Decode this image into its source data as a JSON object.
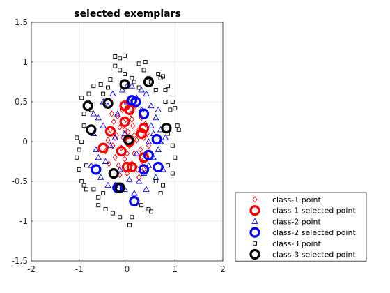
{
  "chart_data": {
    "type": "scatter",
    "title": "selected exemplars",
    "xlabel": "",
    "ylabel": "",
    "xlim": [
      -2,
      2
    ],
    "ylim": [
      -1.5,
      1.5
    ],
    "xticks": [
      "-2",
      "-1",
      "0",
      "1",
      "2"
    ],
    "yticks": [
      "1.5",
      "1",
      "0.5",
      "0",
      "-0.5",
      "-1",
      "-1.5"
    ],
    "grid": true,
    "legend_position": "bottom-right-outside",
    "series": [
      {
        "name": "class-1 point",
        "role": "point",
        "marker": "diamond",
        "color": "#ff0000",
        "points": [
          [
            -0.45,
            -0.12
          ],
          [
            -0.4,
            0.02
          ],
          [
            -0.35,
            0.15
          ],
          [
            -0.3,
            -0.05
          ],
          [
            -0.28,
            0.25
          ],
          [
            -0.25,
            -0.2
          ],
          [
            -0.22,
            0.08
          ],
          [
            -0.2,
            0.32
          ],
          [
            -0.18,
            -0.3
          ],
          [
            -0.15,
            0.18
          ],
          [
            -0.12,
            -0.08
          ],
          [
            -0.1,
            0.4
          ],
          [
            -0.08,
            0.05
          ],
          [
            -0.05,
            -0.22
          ],
          [
            -0.03,
            0.28
          ],
          [
            0.0,
            -0.4
          ],
          [
            0.02,
            0.12
          ],
          [
            0.05,
            -0.05
          ],
          [
            0.08,
            0.35
          ],
          [
            0.1,
            -0.28
          ],
          [
            0.12,
            0.2
          ],
          [
            0.15,
            -0.15
          ],
          [
            0.18,
            0.45
          ],
          [
            0.2,
            0.02
          ],
          [
            0.22,
            -0.35
          ],
          [
            0.25,
            0.15
          ],
          [
            0.28,
            -0.1
          ],
          [
            0.3,
            0.3
          ],
          [
            0.32,
            -0.25
          ],
          [
            0.35,
            0.05
          ],
          [
            0.38,
            0.22
          ],
          [
            0.4,
            -0.15
          ],
          [
            0.42,
            0.1
          ],
          [
            0.45,
            -0.05
          ],
          [
            -0.32,
            0.35
          ],
          [
            -0.38,
            -0.28
          ],
          [
            0.05,
            0.5
          ],
          [
            -0.15,
            -0.42
          ],
          [
            0.25,
            -0.45
          ],
          [
            0.15,
            0.08
          ],
          [
            -0.05,
            0.15
          ],
          [
            0.0,
            -0.15
          ],
          [
            0.35,
            -0.35
          ],
          [
            -0.25,
            0.05
          ],
          [
            0.1,
            0.28
          ]
        ]
      },
      {
        "name": "class-1 selected point",
        "role": "selected",
        "marker": "circle",
        "color": "#ff0000",
        "points": [
          [
            -0.05,
            0.45
          ],
          [
            0.05,
            0.4
          ],
          [
            -0.05,
            0.25
          ],
          [
            0.35,
            0.17
          ],
          [
            -0.35,
            0.13
          ],
          [
            0.3,
            0.1
          ],
          [
            -0.5,
            -0.08
          ],
          [
            -0.12,
            -0.12
          ],
          [
            0.0,
            -0.32
          ],
          [
            0.1,
            -0.32
          ],
          [
            0.35,
            -0.2
          ],
          [
            0.05,
            0.0
          ]
        ]
      },
      {
        "name": "class-2 point",
        "role": "point",
        "marker": "triangle",
        "color": "#0000ff",
        "points": [
          [
            -0.75,
            -0.3
          ],
          [
            -0.7,
            0.1
          ],
          [
            -0.65,
            -0.1
          ],
          [
            -0.6,
            0.3
          ],
          [
            -0.55,
            -0.45
          ],
          [
            -0.5,
            0.2
          ],
          [
            -0.45,
            -0.25
          ],
          [
            -0.4,
            0.45
          ],
          [
            -0.35,
            -0.05
          ],
          [
            -0.3,
            0.6
          ],
          [
            -0.25,
            -0.55
          ],
          [
            -0.2,
            0.35
          ],
          [
            -0.15,
            -0.35
          ],
          [
            -0.1,
            0.65
          ],
          [
            -0.05,
            -0.6
          ],
          [
            0.0,
            0.5
          ],
          [
            0.05,
            -0.48
          ],
          [
            0.1,
            0.7
          ],
          [
            0.15,
            -0.65
          ],
          [
            0.2,
            0.55
          ],
          [
            0.25,
            -0.5
          ],
          [
            0.3,
            0.4
          ],
          [
            0.35,
            -0.4
          ],
          [
            0.4,
            0.6
          ],
          [
            0.45,
            -0.3
          ],
          [
            0.5,
            0.45
          ],
          [
            0.55,
            -0.2
          ],
          [
            0.6,
            0.3
          ],
          [
            0.65,
            -0.1
          ],
          [
            0.7,
            0.15
          ],
          [
            0.75,
            -0.35
          ],
          [
            0.7,
            0.0
          ],
          [
            0.65,
            0.4
          ],
          [
            0.6,
            -0.45
          ],
          [
            0.5,
            0.2
          ],
          [
            0.45,
            0.0
          ],
          [
            -0.5,
            0.5
          ],
          [
            -0.6,
            -0.2
          ],
          [
            0.3,
            0.65
          ],
          [
            -0.25,
            0.05
          ],
          [
            0.2,
            -0.15
          ],
          [
            0.55,
            0.1
          ],
          [
            -0.7,
            0.35
          ],
          [
            0.8,
            0.05
          ],
          [
            -0.4,
            -0.55
          ],
          [
            0.4,
            -0.6
          ],
          [
            0.0,
            0.7
          ],
          [
            -0.05,
            0.1
          ]
        ]
      },
      {
        "name": "class-2 selected point",
        "role": "selected",
        "marker": "circle",
        "color": "#0000ff",
        "points": [
          [
            0.1,
            0.52
          ],
          [
            0.18,
            0.5
          ],
          [
            0.35,
            0.35
          ],
          [
            0.62,
            0.03
          ],
          [
            0.45,
            -0.17
          ],
          [
            -0.65,
            -0.35
          ],
          [
            0.35,
            -0.35
          ],
          [
            0.65,
            -0.32
          ],
          [
            0.15,
            -0.75
          ],
          [
            -0.2,
            -0.58
          ]
        ]
      },
      {
        "name": "class-3 point",
        "role": "point",
        "marker": "square",
        "color": "#000000",
        "points": [
          [
            -0.25,
            1.07
          ],
          [
            -0.15,
            1.05
          ],
          [
            -0.05,
            1.08
          ],
          [
            0.25,
            0.98
          ],
          [
            0.38,
            1.0
          ],
          [
            -0.25,
            0.95
          ],
          [
            -0.15,
            0.9
          ],
          [
            0.35,
            0.9
          ],
          [
            0.65,
            0.85
          ],
          [
            0.7,
            0.8
          ],
          [
            -0.05,
            0.85
          ],
          [
            0.1,
            0.8
          ],
          [
            0.45,
            0.8
          ],
          [
            0.75,
            0.82
          ],
          [
            -0.55,
            0.72
          ],
          [
            -0.4,
            0.68
          ],
          [
            0.25,
            0.68
          ],
          [
            0.6,
            0.65
          ],
          [
            0.8,
            0.65
          ],
          [
            -0.95,
            0.55
          ],
          [
            -0.8,
            0.6
          ],
          [
            -0.5,
            0.6
          ],
          [
            0.95,
            0.5
          ],
          [
            0.8,
            0.5
          ],
          [
            -0.9,
            0.35
          ],
          [
            -0.75,
            0.4
          ],
          [
            0.9,
            0.4
          ],
          [
            1.0,
            0.42
          ],
          [
            -1.05,
            0.05
          ],
          [
            -0.95,
            0.0
          ],
          [
            1.05,
            0.2
          ],
          [
            1.08,
            0.15
          ],
          [
            -0.9,
            0.2
          ],
          [
            -1.0,
            -0.1
          ],
          [
            0.95,
            -0.05
          ],
          [
            0.85,
            0.1
          ],
          [
            -1.0,
            -0.35
          ],
          [
            -0.85,
            -0.3
          ],
          [
            0.95,
            -0.4
          ],
          [
            0.85,
            -0.3
          ],
          [
            -0.9,
            -0.55
          ],
          [
            -0.7,
            -0.6
          ],
          [
            0.75,
            -0.55
          ],
          [
            0.6,
            -0.5
          ],
          [
            -0.6,
            -0.8
          ],
          [
            -0.45,
            -0.85
          ],
          [
            0.45,
            -0.85
          ],
          [
            0.5,
            -0.88
          ],
          [
            -0.3,
            -0.9
          ],
          [
            -0.15,
            -0.95
          ],
          [
            0.05,
            -1.05
          ],
          [
            0.1,
            -0.95
          ],
          [
            -0.5,
            -0.65
          ],
          [
            0.7,
            -0.65
          ],
          [
            -0.95,
            -0.5
          ],
          [
            -0.85,
            -0.6
          ],
          [
            -1.05,
            -0.2
          ],
          [
            1.0,
            -0.2
          ],
          [
            -0.7,
            0.7
          ],
          [
            0.5,
            0.75
          ],
          [
            -0.35,
            0.78
          ],
          [
            0.15,
            0.75
          ],
          [
            -0.6,
            -0.7
          ],
          [
            0.3,
            -0.8
          ],
          [
            -0.75,
            0.5
          ],
          [
            0.85,
            0.7
          ]
        ]
      },
      {
        "name": "class-3 selected point",
        "role": "selected",
        "marker": "circle",
        "color": "#000000",
        "points": [
          [
            -0.05,
            0.72
          ],
          [
            0.45,
            0.75
          ],
          [
            -0.4,
            0.48
          ],
          [
            -0.82,
            0.45
          ],
          [
            -0.75,
            0.15
          ],
          [
            0.82,
            0.17
          ],
          [
            0.03,
            0.02
          ],
          [
            -0.28,
            -0.4
          ],
          [
            -0.15,
            -0.58
          ]
        ]
      }
    ]
  }
}
